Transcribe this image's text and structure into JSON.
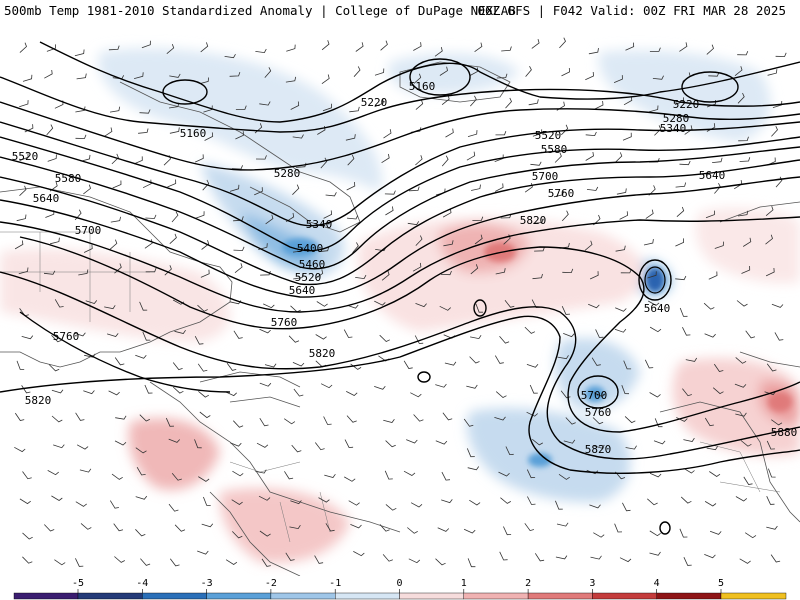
{
  "header": {
    "left": "500mb Temp 1981-2010 Standardized Anomaly | College of DuPage NEXLAB",
    "right": "06Z GFS | F042 Valid: 00Z FRI MAR 28 2025"
  },
  "contours": {
    "labels": [
      "5160",
      "5160",
      "5220",
      "5220",
      "5280",
      "5280",
      "5340",
      "5340",
      "5400",
      "5460",
      "5520",
      "5520",
      "5520",
      "5580",
      "5580",
      "5640",
      "5640",
      "5640",
      "5640",
      "5700",
      "5700",
      "5700",
      "5760",
      "5760",
      "5760",
      "5760",
      "5820",
      "5820",
      "5820",
      "5820",
      "5880"
    ]
  },
  "colorbar": {
    "ticks": [
      "-5",
      "-4",
      "-3",
      "-2",
      "-1",
      "0",
      "1",
      "2",
      "3",
      "4",
      "5"
    ],
    "colors": [
      "#3b1d70",
      "#243a78",
      "#2a6fb8",
      "#5aa0d8",
      "#9fc6e8",
      "#d6e6f4",
      "#f6dcdc",
      "#f0b2b2",
      "#e07a7a",
      "#c43c3c",
      "#8e1416",
      "#f0c020"
    ]
  }
}
